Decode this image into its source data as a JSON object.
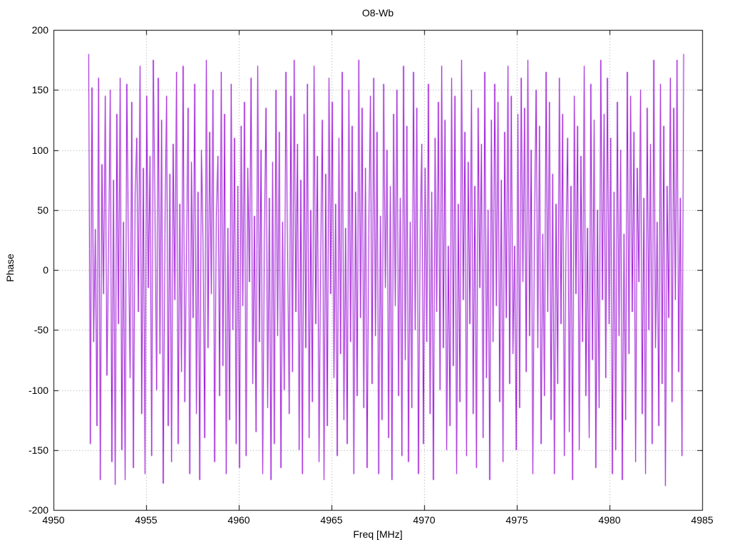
{
  "page": {
    "background": "#ffffff"
  },
  "chart_data": {
    "type": "line",
    "title": "O8-Wb",
    "xlabel": "Freq [MHz]",
    "ylabel": "Phase",
    "xlim": [
      4950,
      4985
    ],
    "ylim": [
      -200,
      200
    ],
    "x_ticks": [
      4950,
      4955,
      4960,
      4965,
      4970,
      4975,
      4980,
      4985
    ],
    "y_ticks": [
      -200,
      -150,
      -100,
      -50,
      0,
      50,
      100,
      150,
      200
    ],
    "grid": true,
    "grid_style": "dotted",
    "grid_color": "#a0a0a0",
    "frame_color": "#000000",
    "legend": "none",
    "line_color": "#9400D3",
    "x_start": 4951.9,
    "x_end": 4984.0,
    "phase_values": [
      180,
      -145,
      152,
      -60,
      34,
      -130,
      160,
      -175,
      88,
      -20,
      145,
      -88,
      12,
      150,
      -160,
      75,
      -179,
      130,
      -45,
      160,
      -150,
      40,
      -175,
      155,
      22,
      -90,
      140,
      -165,
      60,
      110,
      -35,
      170,
      -120,
      85,
      -170,
      145,
      -15,
      95,
      -155,
      175,
      50,
      -100,
      160,
      -70,
      125,
      -178,
      30,
      145,
      -130,
      80,
      -160,
      105,
      -25,
      165,
      -145,
      55,
      -85,
      170,
      -110,
      15,
      135,
      -170,
      90,
      -40,
      155,
      -120,
      65,
      -175,
      100,
      25,
      -140,
      175,
      -65,
      115,
      -20,
      150,
      -160,
      45,
      95,
      -105,
      165,
      -80,
      130,
      -170,
      35,
      -125,
      155,
      -50,
      110,
      -145,
      70,
      -165,
      120,
      -30,
      140,
      -155,
      85,
      -10,
      160,
      -95,
      45,
      -135,
      170,
      -60,
      100,
      -170,
      25,
      135,
      -115,
      60,
      -175,
      90,
      -145,
      150,
      -55,
      115,
      -165,
      40,
      -100,
      165,
      20,
      -120,
      145,
      -85,
      175,
      -35,
      105,
      -150,
      75,
      -170,
      130,
      -65,
      155,
      -140,
      50,
      -110,
      170,
      -45,
      95,
      -160,
      15,
      125,
      -175,
      80,
      -130,
      160,
      -20,
      140,
      -90,
      55,
      -155,
      110,
      -70,
      165,
      -125,
      35,
      -145,
      150,
      -60,
      120,
      -170,
      65,
      -105,
      175,
      -40,
      135,
      -115,
      85,
      -165,
      30,
      145,
      -95,
      160,
      -55,
      115,
      -170,
      45,
      -125,
      155,
      -15,
      100,
      -140,
      70,
      -175,
      130,
      -30,
      150,
      -105,
      60,
      -155,
      170,
      -75,
      120,
      -160,
      40,
      -115,
      165,
      -50,
      135,
      -170,
      25,
      105,
      -145,
      85,
      -60,
      155,
      -120,
      65,
      -175,
      110,
      -35,
      140,
      -100,
      170,
      -65,
      125,
      -150,
      20,
      -130,
      160,
      -80,
      145,
      -170,
      55,
      -110,
      175,
      -25,
      115,
      -155,
      90,
      -45,
      150,
      -120,
      70,
      -165,
      135,
      -15,
      105,
      -140,
      165,
      -90,
      50,
      -175,
      125,
      -60,
      155,
      -30,
      140,
      -110,
      75,
      -160,
      115,
      -40,
      170,
      -95,
      145,
      -70,
      20,
      -150,
      130,
      -115,
      160,
      -10,
      135,
      -85,
      175,
      -55,
      100,
      -170,
      40,
      150,
      -65,
      120,
      -145,
      30,
      -105,
      165,
      -35,
      140,
      -125,
      80,
      -170,
      55,
      -95,
      160,
      -45,
      130,
      -155,
      25,
      110,
      -135,
      70,
      -175,
      145,
      -20,
      120,
      -150,
      95,
      -60,
      170,
      -105,
      35,
      -140,
      155,
      -75,
      125,
      -165,
      50,
      -115,
      175,
      -25,
      130,
      -90,
      160,
      -45,
      110,
      -170,
      65,
      -150,
      140,
      -55,
      100,
      -175,
      30,
      -125,
      165,
      -70,
      145,
      -35,
      115,
      -160,
      85,
      -10,
      150,
      -120,
      60,
      -170,
      135,
      -50,
      105,
      -145,
      175,
      -65,
      40,
      -130,
      155,
      -95,
      120,
      -180,
      70,
      -40,
      160,
      -110,
      135,
      -25,
      175,
      -85,
      60,
      -155,
      180
    ]
  }
}
